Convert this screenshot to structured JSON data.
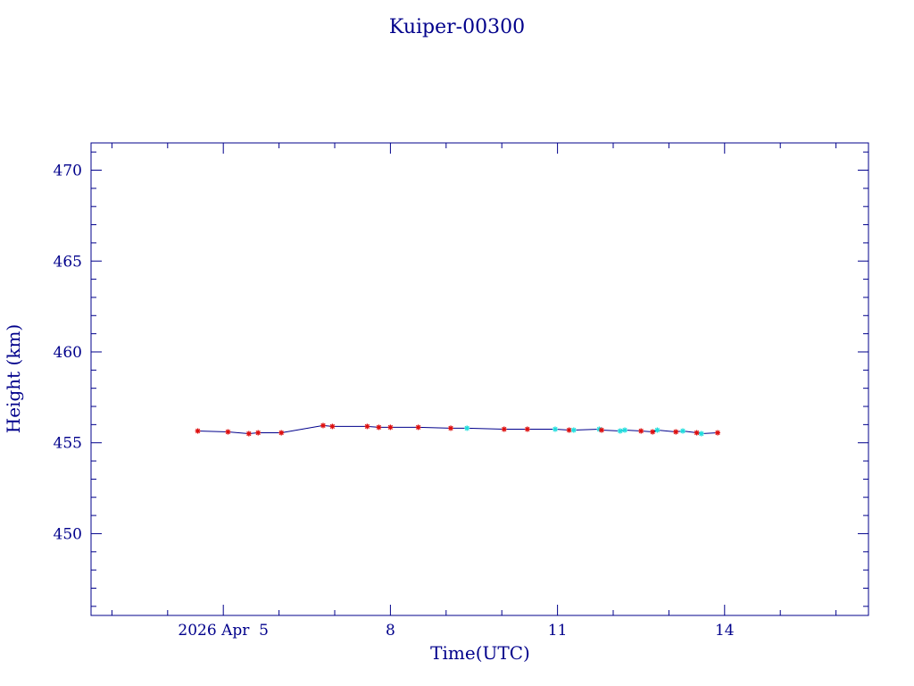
{
  "chart_data": {
    "type": "line",
    "title": "Kuiper-00300",
    "xlabel": "Time(UTC)",
    "ylabel": "Height (km)",
    "ylim": [
      445.5,
      471.5
    ],
    "xlim": [
      "2026-04-02T15:00",
      "2026-04-16T14:00"
    ],
    "x_ticks": [
      {
        "x": "2026-04-05T00:00",
        "label": "2026 Apr  5"
      },
      {
        "x": "2026-04-08T00:00",
        "label": "8"
      },
      {
        "x": "2026-04-11T00:00",
        "label": "11"
      },
      {
        "x": "2026-04-14T00:00",
        "label": "14"
      }
    ],
    "y_ticks": [
      450,
      455,
      460,
      465,
      470
    ],
    "grid": false,
    "colors": {
      "axis": "#00008b",
      "line": "#00008b",
      "marker_red": "#dd1111",
      "marker_cyan": "#22dddd"
    },
    "series": [
      {
        "line": true,
        "points": [
          {
            "x": "2026-04-04T13:00",
            "y": 455.65,
            "marker": "red"
          },
          {
            "x": "2026-04-05T02:00",
            "y": 455.6,
            "marker": "red"
          },
          {
            "x": "2026-04-05T11:00",
            "y": 455.5,
            "marker": "red"
          },
          {
            "x": "2026-04-05T15:00",
            "y": 455.55,
            "marker": "red"
          },
          {
            "x": "2026-04-06T01:00",
            "y": 455.55,
            "marker": "red"
          },
          {
            "x": "2026-04-06T19:00",
            "y": 455.95,
            "marker": "red"
          },
          {
            "x": "2026-04-06T23:00",
            "y": 455.9,
            "marker": "red"
          },
          {
            "x": "2026-04-07T14:00",
            "y": 455.9,
            "marker": "red"
          },
          {
            "x": "2026-04-07T19:00",
            "y": 455.85,
            "marker": "red"
          },
          {
            "x": "2026-04-08T00:00",
            "y": 455.85,
            "marker": "red"
          },
          {
            "x": "2026-04-08T12:00",
            "y": 455.85,
            "marker": "red"
          },
          {
            "x": "2026-04-09T02:00",
            "y": 455.8,
            "marker": "red"
          },
          {
            "x": "2026-04-09T09:00",
            "y": 455.8,
            "marker": "cyan"
          },
          {
            "x": "2026-04-10T01:00",
            "y": 455.75,
            "marker": "red"
          },
          {
            "x": "2026-04-10T11:00",
            "y": 455.75,
            "marker": "red"
          },
          {
            "x": "2026-04-10T23:00",
            "y": 455.75,
            "marker": "cyan"
          },
          {
            "x": "2026-04-11T05:00",
            "y": 455.7,
            "marker": "red"
          },
          {
            "x": "2026-04-11T07:00",
            "y": 455.7,
            "marker": "cyan"
          },
          {
            "x": "2026-04-11T18:00",
            "y": 455.75,
            "marker": "cyan"
          },
          {
            "x": "2026-04-11T19:00",
            "y": 455.7,
            "marker": "red"
          },
          {
            "x": "2026-04-12T03:00",
            "y": 455.65,
            "marker": "cyan"
          },
          {
            "x": "2026-04-12T05:00",
            "y": 455.7,
            "marker": "cyan"
          },
          {
            "x": "2026-04-12T12:00",
            "y": 455.65,
            "marker": "red"
          },
          {
            "x": "2026-04-12T17:00",
            "y": 455.6,
            "marker": "red"
          },
          {
            "x": "2026-04-12T19:00",
            "y": 455.7,
            "marker": "cyan"
          },
          {
            "x": "2026-04-13T03:00",
            "y": 455.6,
            "marker": "red"
          },
          {
            "x": "2026-04-13T06:00",
            "y": 455.65,
            "marker": "cyan"
          },
          {
            "x": "2026-04-13T12:00",
            "y": 455.55,
            "marker": "red"
          },
          {
            "x": "2026-04-13T14:00",
            "y": 455.5,
            "marker": "cyan"
          },
          {
            "x": "2026-04-13T21:00",
            "y": 455.55,
            "marker": "red"
          }
        ]
      }
    ]
  }
}
